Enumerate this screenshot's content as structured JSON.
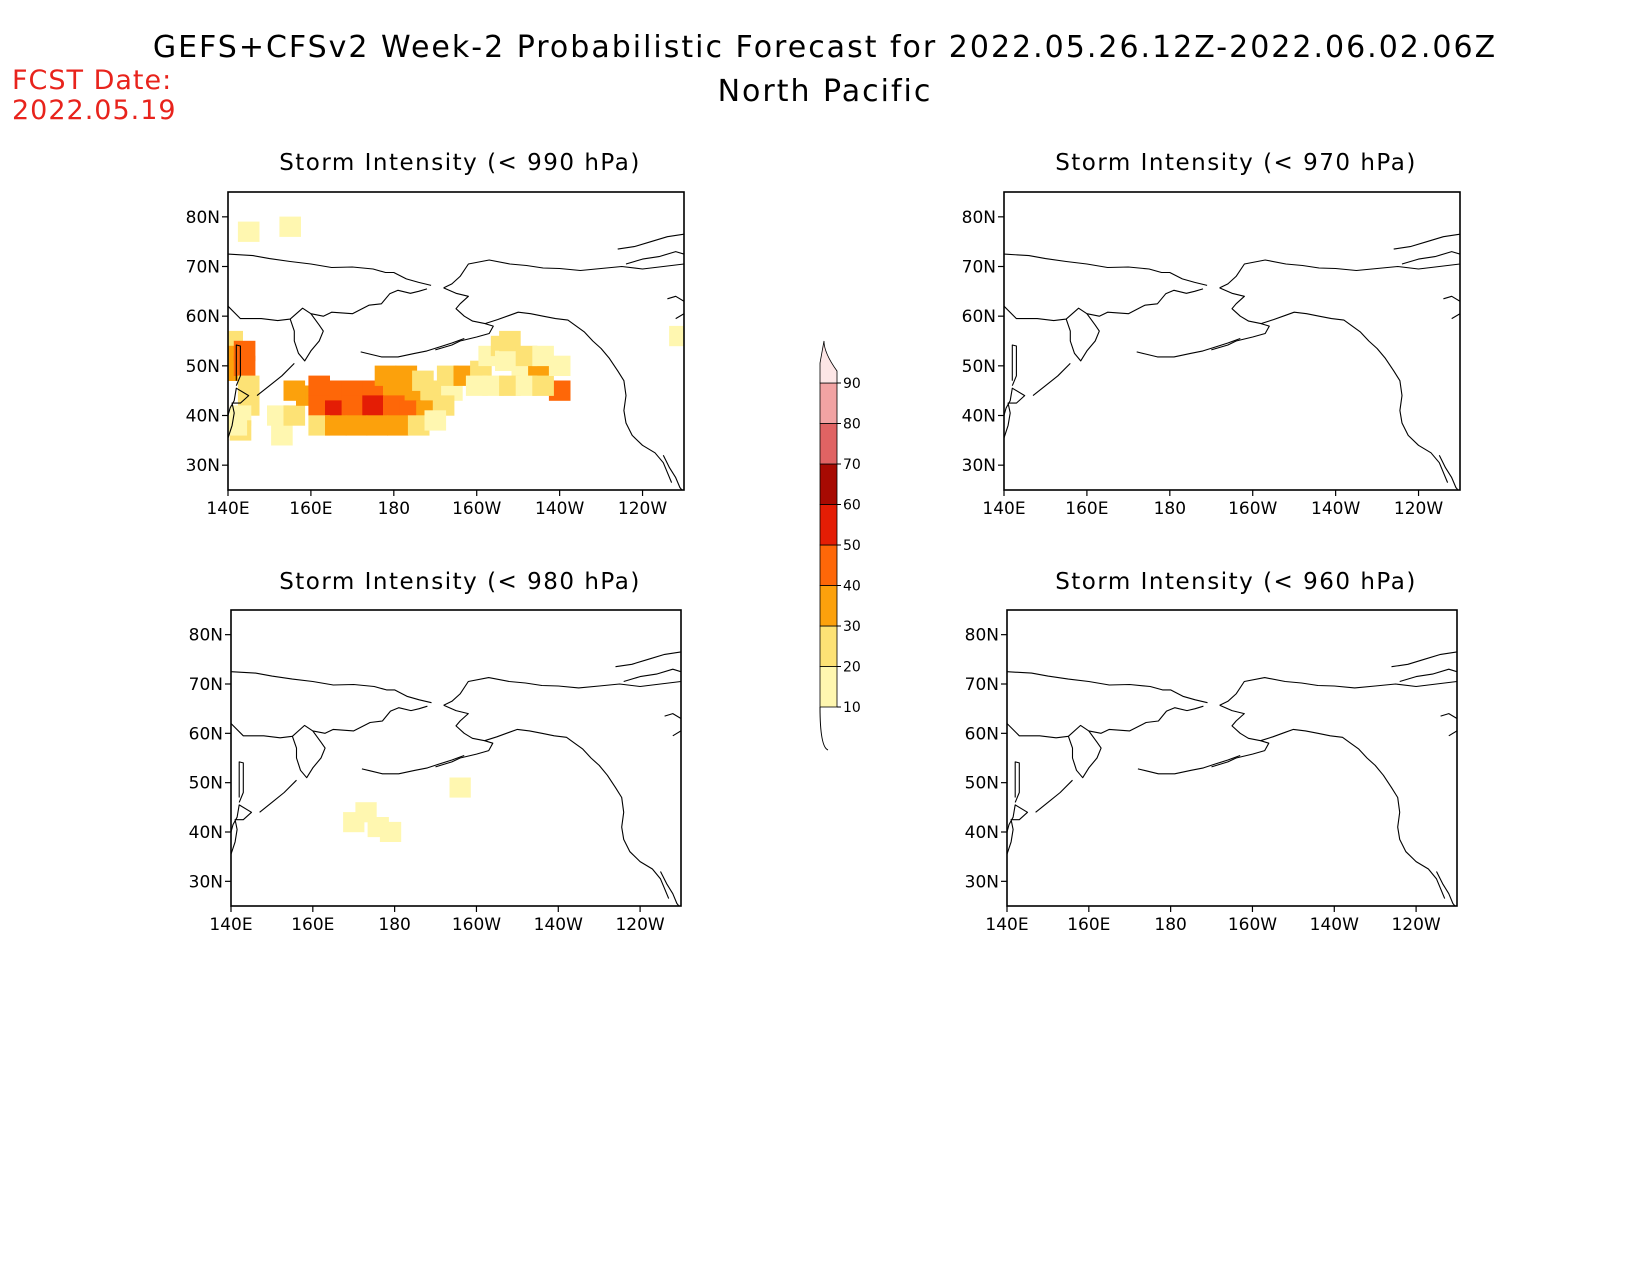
{
  "title": "GEFS+CFSv2 Week-2 Probabilistic Forecast for 2022.05.26.12Z-2022.06.02.06Z",
  "subtitle": "North Pacific",
  "fcst_date_label": "FCST Date:",
  "fcst_date_value": "2022.05.19",
  "colors": {
    "fcst_text": "#e8231c",
    "levels": [
      "#fff7b0",
      "#fde275",
      "#fca10c",
      "#fe6708",
      "#e41d05",
      "#a70a02",
      "#e06363",
      "#f2a3a3",
      "#fde6e6"
    ]
  },
  "colorbar": {
    "labels": [
      "10",
      "20",
      "30",
      "40",
      "50",
      "60",
      "70",
      "80",
      "90"
    ]
  },
  "axes": {
    "lon_labels": [
      "140E",
      "160E",
      "180",
      "160W",
      "140W",
      "120W"
    ],
    "lat_labels": [
      "80N",
      "70N",
      "60N",
      "50N",
      "40N",
      "30N"
    ],
    "lon_range": [
      140,
      250
    ],
    "lat_range": [
      25,
      85
    ]
  },
  "panels": [
    {
      "id": "p990",
      "title": "Storm Intensity (< 990 hPa)",
      "cells": [
        [
          145,
          77,
          1
        ],
        [
          155,
          78,
          1
        ],
        [
          141,
          55,
          2
        ],
        [
          141,
          52,
          3
        ],
        [
          141,
          49,
          3
        ],
        [
          144,
          53,
          4
        ],
        [
          144,
          50,
          4
        ],
        [
          145,
          46,
          2
        ],
        [
          145,
          42,
          2
        ],
        [
          143,
          40,
          1
        ],
        [
          143,
          37,
          2
        ],
        [
          142,
          38,
          1
        ],
        [
          153,
          36,
          1
        ],
        [
          152,
          40,
          1
        ],
        [
          156,
          40,
          2
        ],
        [
          159,
          44,
          3
        ],
        [
          156,
          45,
          3
        ],
        [
          162,
          46,
          4
        ],
        [
          166,
          45,
          4
        ],
        [
          170,
          45,
          4
        ],
        [
          175,
          45,
          4
        ],
        [
          180,
          45,
          3
        ],
        [
          184,
          45,
          3
        ],
        [
          189,
          45,
          2
        ],
        [
          194,
          45,
          1
        ],
        [
          162,
          42,
          4
        ],
        [
          166,
          41,
          5
        ],
        [
          170,
          42,
          4
        ],
        [
          175,
          42,
          5
        ],
        [
          180,
          42,
          4
        ],
        [
          184,
          41,
          4
        ],
        [
          188,
          41,
          3
        ],
        [
          192,
          42,
          2
        ],
        [
          162,
          38,
          2
        ],
        [
          166,
          38,
          3
        ],
        [
          171,
          38,
          3
        ],
        [
          176,
          38,
          3
        ],
        [
          181,
          38,
          3
        ],
        [
          186,
          38,
          2
        ],
        [
          190,
          39,
          1
        ],
        [
          178,
          48,
          3
        ],
        [
          183,
          48,
          3
        ],
        [
          187,
          47,
          2
        ],
        [
          193,
          48,
          2
        ],
        [
          197,
          48,
          3
        ],
        [
          201,
          49,
          2
        ],
        [
          203,
          52,
          1
        ],
        [
          206,
          54,
          2
        ],
        [
          207,
          51,
          1
        ],
        [
          211,
          50,
          1
        ],
        [
          215,
          48,
          3
        ],
        [
          220,
          45,
          4
        ],
        [
          200,
          46,
          1
        ],
        [
          204,
          46,
          1
        ],
        [
          208,
          46,
          2
        ],
        [
          212,
          46,
          1
        ],
        [
          216,
          46,
          2
        ],
        [
          208,
          55,
          2
        ],
        [
          212,
          52,
          2
        ],
        [
          216,
          52,
          1
        ],
        [
          220,
          50,
          1
        ],
        [
          249,
          56,
          1
        ]
      ]
    },
    {
      "id": "p970",
      "title": "Storm Intensity (< 970 hPa)",
      "cells": []
    },
    {
      "id": "p980",
      "title": "Storm Intensity (< 980 hPa)",
      "cells": [
        [
          170,
          42,
          1
        ],
        [
          173,
          44,
          1
        ],
        [
          176,
          41,
          1
        ],
        [
          179,
          40,
          1
        ],
        [
          196,
          49,
          1
        ]
      ]
    },
    {
      "id": "p960",
      "title": "Storm Intensity (< 960 hPa)",
      "cells": []
    }
  ]
}
